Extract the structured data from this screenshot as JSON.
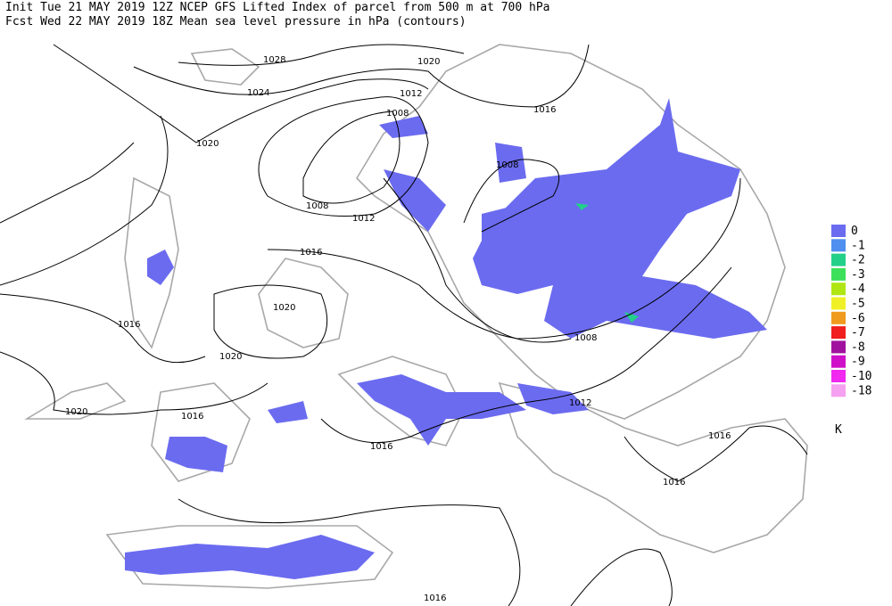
{
  "header": {
    "line1": "Init  Tue 21 MAY 2019 12Z  NCEP GFS Lifted Index of parcel from 500 m at 700 hPa",
    "line2": "Fcst Wed 22 MAY 2019 18Z  Mean sea level pressure in hPa (contours)"
  },
  "contour_labels": [
    "1028",
    "1024",
    "1020",
    "1020",
    "1012",
    "1016",
    "1008",
    "1008",
    "1008",
    "1012",
    "1016",
    "1020",
    "1020",
    "1016",
    "1020",
    "1016",
    "1016",
    "1012",
    "1008",
    "1016",
    "1016",
    "1016"
  ],
  "legend": {
    "items": [
      {
        "label": "0",
        "color": "#6b6bf0"
      },
      {
        "label": "-1",
        "color": "#4f8ff0"
      },
      {
        "label": "-2",
        "color": "#22d08a"
      },
      {
        "label": "-3",
        "color": "#3ce05a"
      },
      {
        "label": "-4",
        "color": "#b0e614"
      },
      {
        "label": "-5",
        "color": "#f0f028"
      },
      {
        "label": "-6",
        "color": "#f09a1e"
      },
      {
        "label": "-7",
        "color": "#f01e1e"
      },
      {
        "label": "-8",
        "color": "#a0129e"
      },
      {
        "label": "-9",
        "color": "#d010c8"
      },
      {
        "label": "-10",
        "color": "#f028f0"
      },
      {
        "label": "-18",
        "color": "#f5a0f0"
      }
    ],
    "unit": "K"
  }
}
